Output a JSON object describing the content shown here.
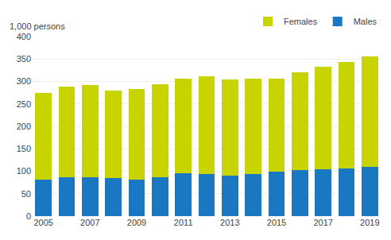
{
  "chart_data": {
    "type": "bar",
    "stacked": true,
    "ylabel": "1,000 persons",
    "categories": [
      "2005",
      null,
      "2007",
      null,
      "2009",
      null,
      "2011",
      null,
      "2013",
      null,
      "2015",
      null,
      "2017",
      null,
      "2019"
    ],
    "series": [
      {
        "name": "Males",
        "color": "#1a78c2",
        "values": [
          82,
          86,
          87,
          85,
          81,
          86,
          95,
          94,
          90,
          94,
          99,
          102,
          104,
          107,
          110
        ]
      },
      {
        "name": "Females",
        "color": "#c8d400",
        "values": [
          192,
          203,
          205,
          195,
          202,
          208,
          211,
          217,
          214,
          212,
          207,
          218,
          228,
          236,
          246
        ]
      }
    ],
    "ylim": [
      0,
      400
    ],
    "yticks": [
      0,
      50,
      100,
      150,
      200,
      250,
      300,
      350,
      400
    ],
    "grid": true,
    "legend": "upper right"
  }
}
